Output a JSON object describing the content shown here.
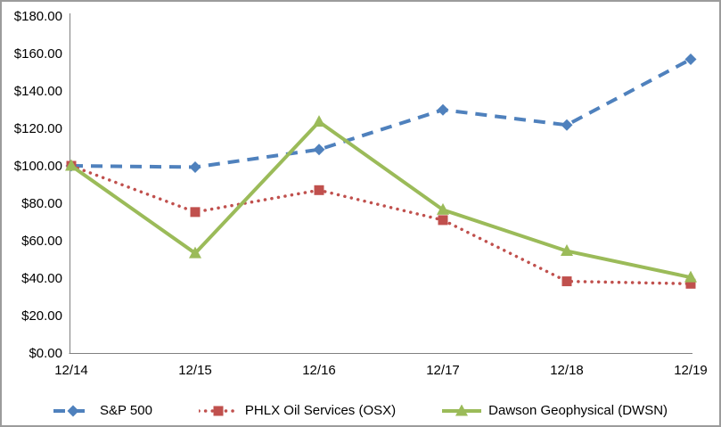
{
  "chart_data": {
    "type": "line",
    "title": "",
    "xlabel": "",
    "ylabel": "",
    "categories": [
      "12/14",
      "12/15",
      "12/16",
      "12/17",
      "12/18",
      "12/19"
    ],
    "y_ticks": [
      0,
      20,
      40,
      60,
      80,
      100,
      120,
      140,
      160,
      180
    ],
    "y_tick_labels": [
      "$0.00",
      "$20.00",
      "$40.00",
      "$60.00",
      "$80.00",
      "$100.00",
      "$120.00",
      "$140.00",
      "$160.00",
      "$180.00"
    ],
    "ylim": [
      0,
      180
    ],
    "grid": false,
    "legend_position": "bottom",
    "axis_color": "#808080",
    "text_color": "#000000",
    "series": [
      {
        "name": "S&P 500",
        "color": "#4F81BD",
        "marker": "diamond",
        "line_style": "dashed",
        "values": [
          100,
          99.3,
          108.7,
          129.9,
          121.8,
          156.9
        ]
      },
      {
        "name": "PHLX Oil Services (OSX)",
        "color": "#C0504D",
        "marker": "square",
        "line_style": "dotted",
        "values": [
          100,
          75.3,
          87.0,
          71.0,
          38.3,
          37.0
        ]
      },
      {
        "name": "Dawson Geophysical (DWSN)",
        "color": "#9BBB59",
        "marker": "triangle",
        "line_style": "solid",
        "values": [
          100,
          53.3,
          123.5,
          76.5,
          54.5,
          40.4
        ]
      }
    ]
  },
  "frame": {
    "border_color": "#9b9b9b",
    "background": "#ffffff"
  }
}
